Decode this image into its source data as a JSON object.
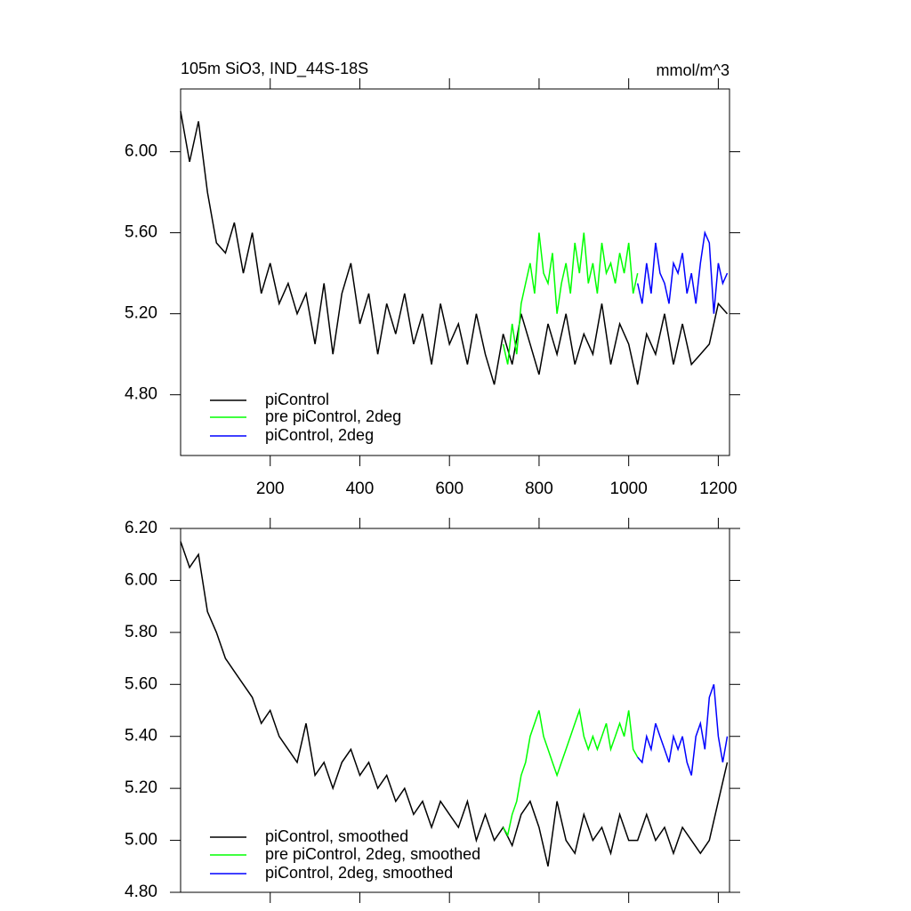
{
  "chart_data": [
    {
      "type": "line",
      "title": "105m SiO3, IND_44S-18S",
      "y_units": "mmol/m^3",
      "legend": "lower left",
      "xlim": [
        0,
        1225
      ],
      "ylim": [
        4.5,
        6.31
      ],
      "xticks": [
        200,
        400,
        600,
        800,
        1000,
        1200
      ],
      "yticks": [
        {
          "value": 4.8,
          "label": "4.80"
        },
        {
          "value": 5.2,
          "label": "5.20"
        },
        {
          "value": 5.6,
          "label": "5.60"
        },
        {
          "value": 6.0,
          "label": "6.00"
        }
      ],
      "series": [
        {
          "name": "piControl",
          "color": "#000000",
          "x": [
            0,
            20,
            40,
            60,
            80,
            100,
            120,
            140,
            160,
            180,
            200,
            220,
            240,
            260,
            280,
            300,
            320,
            340,
            360,
            380,
            400,
            420,
            440,
            460,
            480,
            500,
            520,
            540,
            560,
            580,
            600,
            620,
            640,
            660,
            680,
            700,
            720,
            740,
            760,
            780,
            800,
            820,
            840,
            860,
            880,
            900,
            920,
            940,
            960,
            980,
            1000,
            1020,
            1040,
            1060,
            1080,
            1100,
            1120,
            1140,
            1160,
            1180,
            1200,
            1220
          ],
          "values": [
            6.2,
            5.95,
            6.15,
            5.8,
            5.55,
            5.5,
            5.65,
            5.4,
            5.6,
            5.3,
            5.45,
            5.25,
            5.35,
            5.2,
            5.3,
            5.05,
            5.35,
            5.0,
            5.3,
            5.45,
            5.15,
            5.3,
            5.0,
            5.25,
            5.1,
            5.3,
            5.05,
            5.2,
            4.95,
            5.25,
            5.05,
            5.15,
            4.95,
            5.2,
            5.0,
            4.85,
            5.1,
            4.95,
            5.2,
            5.05,
            4.9,
            5.15,
            5.0,
            5.2,
            4.95,
            5.1,
            5.0,
            5.25,
            4.95,
            5.15,
            5.05,
            4.85,
            5.1,
            5.0,
            5.2,
            4.95,
            5.15,
            4.95,
            5.0,
            5.05,
            5.25,
            5.2
          ]
        },
        {
          "name": "pre piControl, 2deg",
          "color": "#00ff00",
          "x": [
            720,
            730,
            740,
            750,
            760,
            770,
            780,
            790,
            800,
            810,
            820,
            830,
            840,
            850,
            860,
            870,
            880,
            890,
            900,
            910,
            920,
            930,
            940,
            950,
            960,
            970,
            980,
            990,
            1000,
            1010,
            1020
          ],
          "values": [
            5.05,
            4.95,
            5.15,
            5.0,
            5.25,
            5.35,
            5.45,
            5.3,
            5.6,
            5.4,
            5.35,
            5.5,
            5.2,
            5.35,
            5.45,
            5.3,
            5.55,
            5.4,
            5.6,
            5.35,
            5.45,
            5.3,
            5.55,
            5.4,
            5.45,
            5.35,
            5.5,
            5.4,
            5.55,
            5.3,
            5.4
          ]
        },
        {
          "name": "piControl, 2deg",
          "color": "#0000ff",
          "x": [
            1020,
            1030,
            1040,
            1050,
            1060,
            1070,
            1080,
            1090,
            1100,
            1110,
            1120,
            1130,
            1140,
            1150,
            1160,
            1170,
            1180,
            1190,
            1200,
            1210,
            1220
          ],
          "values": [
            5.35,
            5.25,
            5.45,
            5.3,
            5.55,
            5.4,
            5.35,
            5.25,
            5.45,
            5.4,
            5.5,
            5.3,
            5.4,
            5.25,
            5.45,
            5.6,
            5.55,
            5.2,
            5.45,
            5.35,
            5.4
          ]
        }
      ]
    },
    {
      "type": "line",
      "legend": "lower left",
      "xlim": [
        0,
        1225
      ],
      "ylim": [
        4.8,
        6.2
      ],
      "yticks": [
        {
          "value": 4.8,
          "label": "4.80"
        },
        {
          "value": 5.0,
          "label": "5.00"
        },
        {
          "value": 5.2,
          "label": "5.20"
        },
        {
          "value": 5.4,
          "label": "5.40"
        },
        {
          "value": 5.6,
          "label": "5.60"
        },
        {
          "value": 5.8,
          "label": "5.80"
        },
        {
          "value": 6.0,
          "label": "6.00"
        },
        {
          "value": 6.2,
          "label": "6.20"
        }
      ],
      "series": [
        {
          "name": "piControl, smoothed",
          "color": "#000000",
          "x": [
            0,
            20,
            40,
            60,
            80,
            100,
            120,
            140,
            160,
            180,
            200,
            220,
            240,
            260,
            280,
            300,
            320,
            340,
            360,
            380,
            400,
            420,
            440,
            460,
            480,
            500,
            520,
            540,
            560,
            580,
            600,
            620,
            640,
            660,
            680,
            700,
            720,
            740,
            760,
            780,
            800,
            820,
            840,
            860,
            880,
            900,
            920,
            940,
            960,
            980,
            1000,
            1020,
            1040,
            1060,
            1080,
            1100,
            1120,
            1140,
            1160,
            1180,
            1200,
            1220
          ],
          "values": [
            6.15,
            6.05,
            6.1,
            5.88,
            5.8,
            5.7,
            5.65,
            5.6,
            5.55,
            5.45,
            5.5,
            5.4,
            5.35,
            5.3,
            5.45,
            5.25,
            5.3,
            5.2,
            5.3,
            5.35,
            5.25,
            5.3,
            5.2,
            5.25,
            5.15,
            5.2,
            5.1,
            5.15,
            5.05,
            5.15,
            5.1,
            5.05,
            5.15,
            5.0,
            5.1,
            5.0,
            5.05,
            4.98,
            5.1,
            5.15,
            5.05,
            4.9,
            5.15,
            5.0,
            4.95,
            5.1,
            5.0,
            5.05,
            4.95,
            5.1,
            5.0,
            5.0,
            5.1,
            5.0,
            5.05,
            4.95,
            5.05,
            5.0,
            4.95,
            5.0,
            5.15,
            5.3
          ]
        },
        {
          "name": "pre piControl, 2deg, smoothed",
          "color": "#00ff00",
          "x": [
            720,
            730,
            740,
            750,
            760,
            770,
            780,
            790,
            800,
            810,
            820,
            830,
            840,
            850,
            860,
            870,
            880,
            890,
            900,
            910,
            920,
            930,
            940,
            950,
            960,
            970,
            980,
            990,
            1000,
            1010,
            1020
          ],
          "values": [
            5.05,
            5.02,
            5.1,
            5.15,
            5.25,
            5.3,
            5.4,
            5.45,
            5.5,
            5.4,
            5.35,
            5.3,
            5.25,
            5.3,
            5.35,
            5.4,
            5.45,
            5.5,
            5.4,
            5.35,
            5.4,
            5.35,
            5.4,
            5.45,
            5.35,
            5.4,
            5.45,
            5.4,
            5.5,
            5.35,
            5.32
          ]
        },
        {
          "name": "piControl, 2deg, smoothed",
          "color": "#0000ff",
          "x": [
            1020,
            1030,
            1040,
            1050,
            1060,
            1070,
            1080,
            1090,
            1100,
            1110,
            1120,
            1130,
            1140,
            1150,
            1160,
            1170,
            1180,
            1190,
            1200,
            1210,
            1220
          ],
          "values": [
            5.32,
            5.3,
            5.4,
            5.35,
            5.45,
            5.4,
            5.35,
            5.3,
            5.4,
            5.35,
            5.4,
            5.3,
            5.25,
            5.4,
            5.45,
            5.35,
            5.55,
            5.6,
            5.4,
            5.3,
            5.4
          ]
        }
      ]
    }
  ]
}
